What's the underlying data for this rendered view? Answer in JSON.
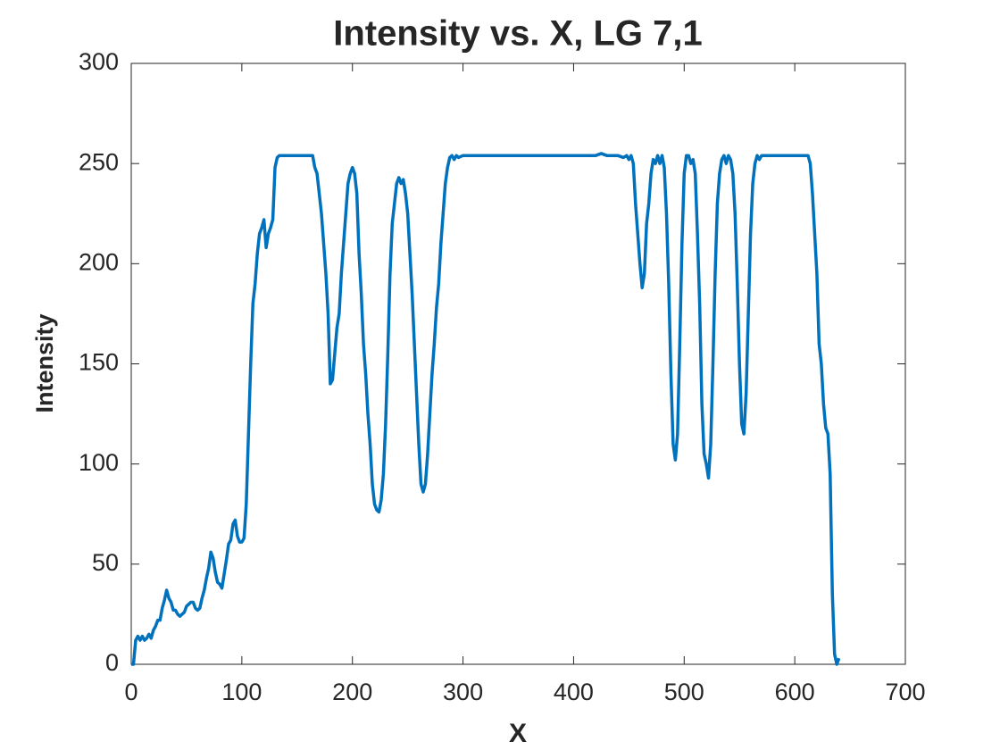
{
  "chart_data": {
    "type": "line",
    "title": "Intensity vs. X, LG 7,1",
    "x_label": "X",
    "y_label": "Intensity",
    "xlim": [
      0,
      700
    ],
    "ylim": [
      0,
      300
    ],
    "xticks": [
      0,
      100,
      200,
      300,
      400,
      500,
      600,
      700
    ],
    "yticks": [
      0,
      50,
      100,
      150,
      200,
      250,
      300
    ],
    "grid": false,
    "x": [
      0,
      2,
      4,
      6,
      8,
      10,
      12,
      14,
      16,
      18,
      20,
      22,
      24,
      26,
      28,
      30,
      32,
      34,
      36,
      38,
      40,
      42,
      44,
      46,
      48,
      50,
      52,
      54,
      56,
      58,
      60,
      62,
      64,
      66,
      68,
      70,
      72,
      74,
      76,
      78,
      80,
      82,
      84,
      86,
      88,
      90,
      92,
      94,
      96,
      98,
      100,
      102,
      104,
      106,
      108,
      110,
      112,
      114,
      116,
      118,
      120,
      122,
      124,
      126,
      128,
      130,
      132,
      134,
      136,
      140,
      145,
      150,
      155,
      160,
      164,
      166,
      168,
      170,
      172,
      174,
      176,
      178,
      180,
      182,
      184,
      186,
      188,
      190,
      192,
      194,
      196,
      198,
      200,
      202,
      204,
      206,
      208,
      210,
      212,
      214,
      216,
      218,
      220,
      222,
      224,
      226,
      228,
      230,
      232,
      234,
      236,
      238,
      240,
      242,
      244,
      246,
      248,
      250,
      252,
      254,
      256,
      258,
      260,
      262,
      264,
      266,
      268,
      270,
      272,
      274,
      276,
      278,
      280,
      282,
      284,
      286,
      288,
      290,
      292,
      294,
      296,
      300,
      350,
      400,
      420,
      425,
      430,
      440,
      445,
      448,
      450,
      452,
      454,
      456,
      458,
      460,
      462,
      464,
      466,
      468,
      470,
      472,
      474,
      476,
      478,
      480,
      482,
      484,
      486,
      488,
      490,
      492,
      494,
      496,
      498,
      500,
      502,
      504,
      506,
      508,
      510,
      512,
      514,
      516,
      518,
      520,
      522,
      524,
      526,
      528,
      530,
      532,
      534,
      536,
      538,
      540,
      542,
      544,
      546,
      548,
      550,
      552,
      554,
      556,
      558,
      560,
      562,
      564,
      566,
      568,
      570,
      575,
      580,
      600,
      612,
      614,
      616,
      618,
      620,
      622,
      624,
      626,
      628,
      630,
      632,
      634,
      636,
      638,
      640
    ],
    "series": [
      {
        "name": "Intensity",
        "color": "#0072BD",
        "values": [
          0,
          0,
          12,
          14,
          12,
          14,
          12,
          13,
          15,
          13,
          17,
          19,
          22,
          22,
          28,
          32,
          37,
          33,
          31,
          27,
          27,
          25,
          24,
          25,
          26,
          29,
          30,
          31,
          31,
          28,
          27,
          28,
          33,
          37,
          43,
          48,
          56,
          53,
          46,
          41,
          40,
          38,
          45,
          52,
          60,
          62,
          70,
          72,
          64,
          61,
          61,
          63,
          80,
          115,
          150,
          180,
          190,
          205,
          215,
          218,
          222,
          208,
          215,
          218,
          222,
          248,
          253,
          254,
          254,
          254,
          254,
          254,
          254,
          254,
          254,
          248,
          245,
          235,
          225,
          210,
          195,
          175,
          140,
          142,
          155,
          168,
          175,
          195,
          210,
          225,
          240,
          245,
          248,
          245,
          235,
          205,
          185,
          160,
          145,
          125,
          110,
          90,
          80,
          77,
          76,
          82,
          95,
          120,
          155,
          195,
          220,
          230,
          240,
          243,
          240,
          242,
          235,
          225,
          205,
          185,
          160,
          135,
          110,
          90,
          86,
          90,
          105,
          125,
          145,
          160,
          178,
          190,
          210,
          225,
          240,
          248,
          253,
          254,
          252,
          254,
          253,
          254,
          254,
          254,
          254,
          255,
          254,
          254,
          253,
          254,
          252,
          254,
          250,
          230,
          215,
          200,
          188,
          195,
          220,
          230,
          245,
          252,
          250,
          254,
          250,
          254,
          248,
          225,
          190,
          145,
          110,
          102,
          115,
          160,
          210,
          245,
          254,
          254,
          250,
          252,
          245,
          215,
          180,
          130,
          105,
          100,
          93,
          110,
          150,
          195,
          230,
          245,
          252,
          254,
          250,
          254,
          252,
          245,
          225,
          190,
          150,
          120,
          115,
          135,
          175,
          215,
          240,
          250,
          254,
          252,
          254,
          254,
          254,
          254,
          254,
          250,
          235,
          215,
          195,
          160,
          150,
          130,
          118,
          115,
          95,
          35,
          5,
          0,
          3
        ]
      }
    ]
  }
}
